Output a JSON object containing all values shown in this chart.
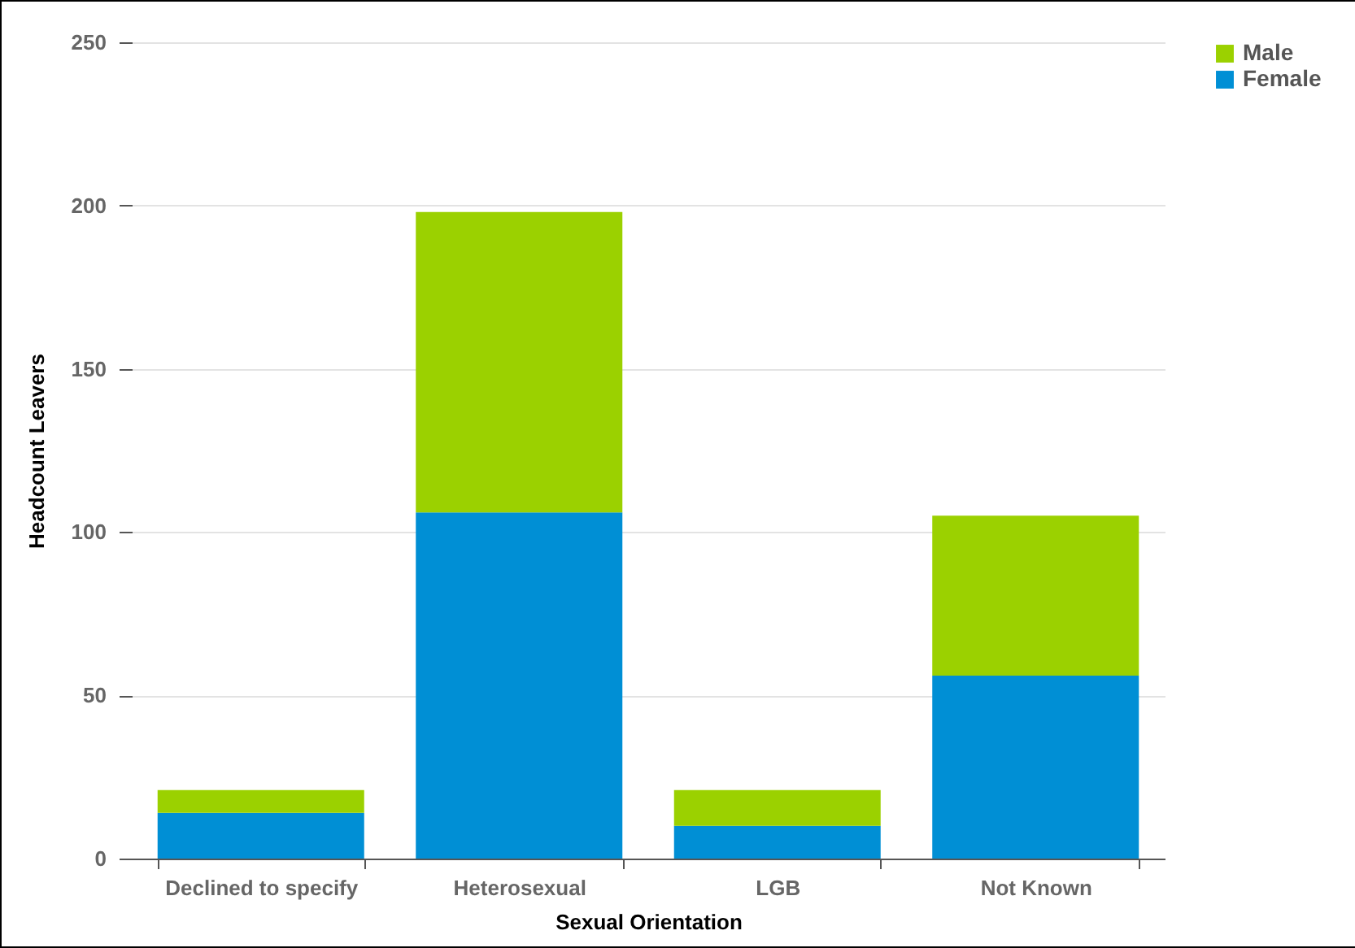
{
  "chart_data": {
    "type": "bar",
    "stacked": true,
    "xlabel": "Sexual Orientation",
    "ylabel": "Headcount Leavers",
    "categories": [
      "Declined to specify",
      "Heterosexual",
      "LGB",
      "Not Known"
    ],
    "series": [
      {
        "name": "Female",
        "color": "#008fd5",
        "values": [
          14,
          106,
          10,
          56
        ]
      },
      {
        "name": "Male",
        "color": "#9bd100",
        "values": [
          7,
          92,
          11,
          49
        ]
      }
    ],
    "ylim": [
      0,
      250
    ],
    "yticks": [
      0,
      50,
      100,
      150,
      200,
      250
    ],
    "grid": "y",
    "legend": "right"
  }
}
